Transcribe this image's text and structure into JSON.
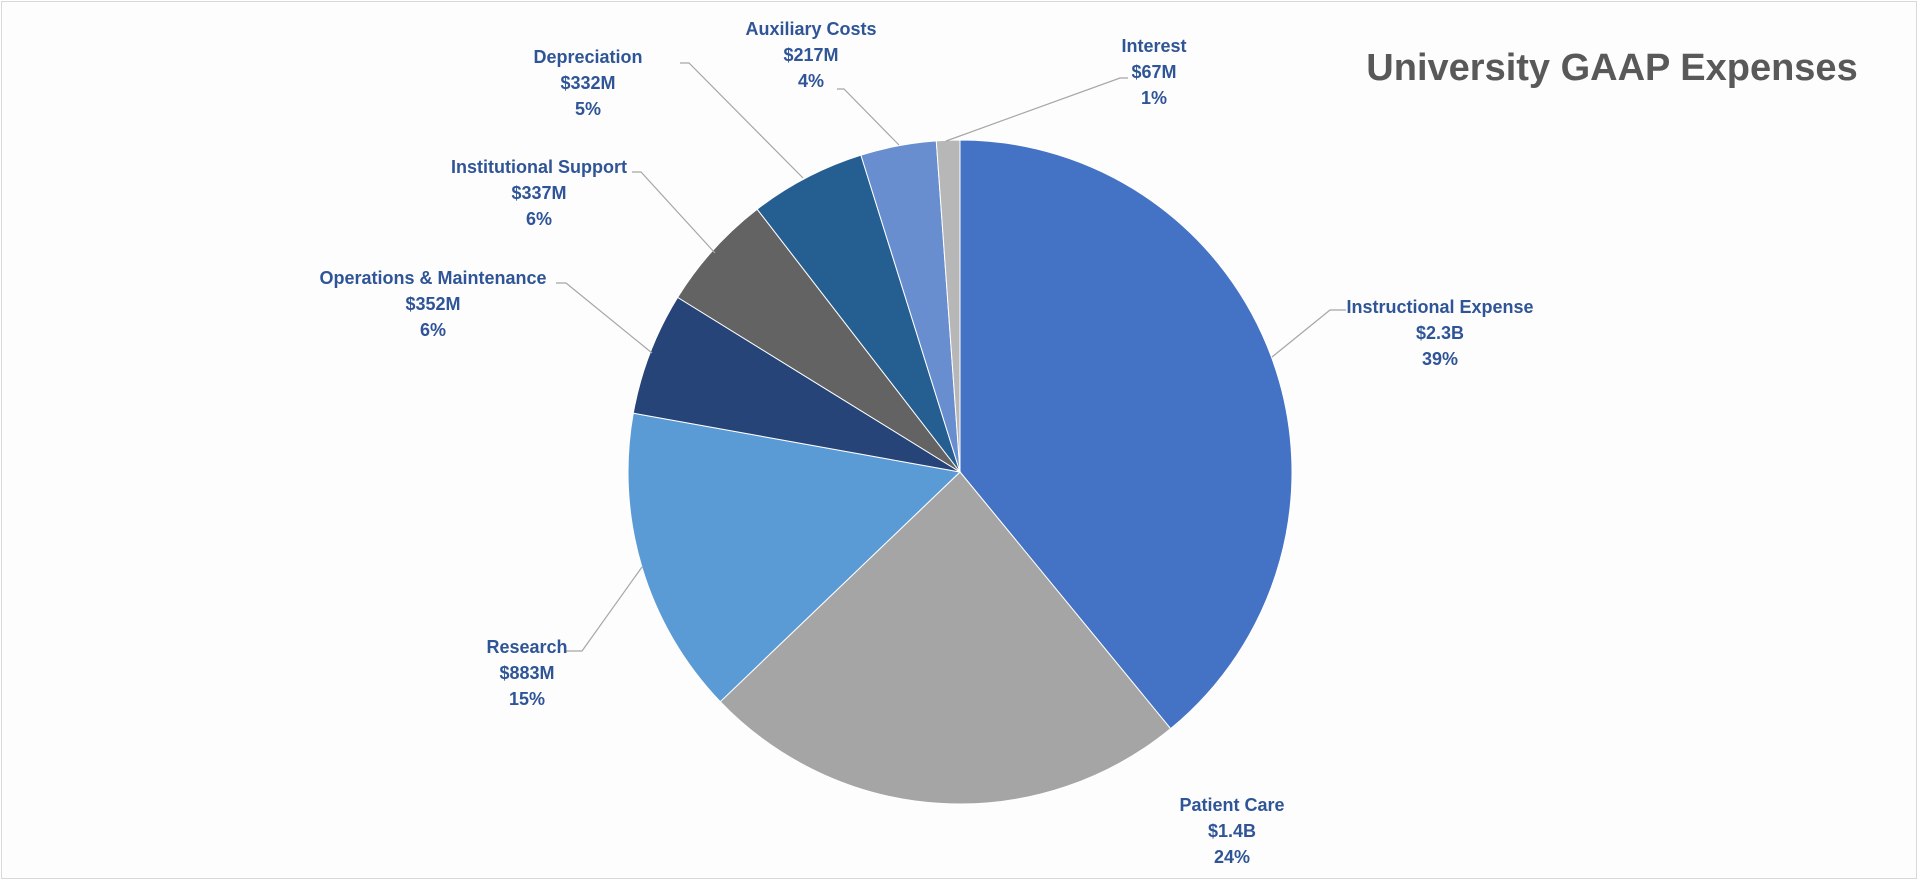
{
  "chart_data": {
    "type": "pie",
    "title": "University GAAP Expenses",
    "slices": [
      {
        "label": "Instructional Expense",
        "value_text": "$2.3B",
        "pct_text": "39%",
        "value": 2300,
        "color": "#4472C4"
      },
      {
        "label": "Patient Care",
        "value_text": "$1.4B",
        "pct_text": "24%",
        "value": 1400,
        "color": "#A5A5A5"
      },
      {
        "label": "Research",
        "value_text": "$883M",
        "pct_text": "15%",
        "value": 883,
        "color": "#5B9BD5"
      },
      {
        "label": "Operations & Maintenance",
        "value_text": "$352M",
        "pct_text": "6%",
        "value": 352,
        "color": "#264478"
      },
      {
        "label": "Institutional Support",
        "value_text": "$337M",
        "pct_text": "6%",
        "value": 337,
        "color": "#636363"
      },
      {
        "label": "Depreciation",
        "value_text": "$332M",
        "pct_text": "5%",
        "value": 332,
        "color": "#255E91"
      },
      {
        "label": "Auxiliary Costs",
        "value_text": "$217M",
        "pct_text": "4%",
        "value": 217,
        "color": "#698ED0"
      },
      {
        "label": "Interest",
        "value_text": "$67M",
        "pct_text": "1%",
        "value": 67,
        "color": "#B7B7B7"
      }
    ],
    "label_color": "#2F5597",
    "leader_color": "#A6A6A6"
  }
}
